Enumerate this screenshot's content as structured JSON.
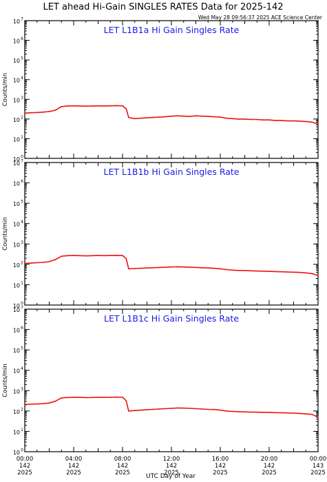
{
  "title": "LET ahead Hi-Gain SINGLES RATES Data for 2025-142",
  "timestamp": "Wed May 28 09:56:37 2025 ACE Science Center",
  "xlabel": "UTC Day of Year",
  "colors": {
    "series": "#ee1111",
    "panel_title": "#1a1ae6",
    "axes": "#000000"
  },
  "chart_data": [
    {
      "type": "line",
      "title": "LET L1B1a Hi Gain Singles Rate",
      "ylabel": "Counts/min",
      "yscale": "log",
      "ylim": [
        1,
        10000000
      ],
      "y_ticks": [
        {
          "base": "10",
          "exp": "0"
        },
        {
          "base": "10",
          "exp": "1"
        },
        {
          "base": "10",
          "exp": "2"
        },
        {
          "base": "10",
          "exp": "3"
        },
        {
          "base": "10",
          "exp": "4"
        },
        {
          "base": "10",
          "exp": "5"
        },
        {
          "base": "10",
          "exp": "6"
        },
        {
          "base": "10",
          "exp": "7"
        }
      ],
      "xlim": [
        0,
        24
      ],
      "series": [
        {
          "x": [
            0,
            0.5,
            1,
            1.5,
            2,
            2.5,
            3,
            3.5,
            4,
            4.5,
            5,
            5.5,
            6,
            6.5,
            7,
            7.5,
            8,
            8.3,
            8.5,
            9,
            9.5,
            10,
            10.5,
            11,
            11.5,
            12,
            12.5,
            13,
            13.5,
            14,
            14.5,
            15,
            15.5,
            16,
            16.5,
            17,
            17.5,
            18,
            18.5,
            19,
            19.5,
            20,
            20.5,
            21,
            21.5,
            22,
            22.5,
            23,
            23.5,
            24
          ],
          "y": [
            200,
            210,
            215,
            225,
            240,
            280,
            430,
            460,
            470,
            460,
            450,
            460,
            470,
            460,
            470,
            480,
            470,
            330,
            120,
            105,
            110,
            115,
            120,
            125,
            130,
            140,
            145,
            140,
            135,
            145,
            140,
            135,
            130,
            125,
            110,
            105,
            100,
            100,
            95,
            95,
            90,
            90,
            85,
            85,
            80,
            80,
            78,
            75,
            70,
            55
          ]
        }
      ]
    },
    {
      "type": "line",
      "title": "LET L1B1b Hi Gain Singles Rate",
      "ylabel": "Counts/min",
      "yscale": "log",
      "ylim": [
        1,
        10000000
      ],
      "y_ticks": [
        {
          "base": "10",
          "exp": "0"
        },
        {
          "base": "10",
          "exp": "1"
        },
        {
          "base": "10",
          "exp": "2"
        },
        {
          "base": "10",
          "exp": "3"
        },
        {
          "base": "10",
          "exp": "4"
        },
        {
          "base": "10",
          "exp": "5"
        },
        {
          "base": "10",
          "exp": "6"
        },
        {
          "base": "10",
          "exp": "7"
        }
      ],
      "xlim": [
        0,
        24
      ],
      "series": [
        {
          "x": [
            0,
            0.5,
            1,
            1.5,
            2,
            2.5,
            3,
            3.5,
            4,
            4.5,
            5,
            5.5,
            6,
            6.5,
            7,
            7.5,
            8,
            8.3,
            8.5,
            9,
            9.5,
            10,
            10.5,
            11,
            11.5,
            12,
            12.5,
            13,
            13.5,
            14,
            14.5,
            15,
            15.5,
            16,
            16.5,
            17,
            17.5,
            18,
            18.5,
            19,
            19.5,
            20,
            20.5,
            21,
            21.5,
            22,
            22.5,
            23,
            23.5,
            24
          ],
          "y": [
            110,
            115,
            120,
            125,
            135,
            170,
            250,
            265,
            270,
            265,
            260,
            265,
            270,
            265,
            270,
            275,
            270,
            190,
            60,
            62,
            64,
            66,
            68,
            70,
            72,
            74,
            76,
            74,
            72,
            70,
            68,
            66,
            64,
            60,
            55,
            52,
            50,
            50,
            48,
            47,
            46,
            45,
            44,
            43,
            42,
            41,
            40,
            38,
            35,
            28
          ]
        }
      ]
    },
    {
      "type": "line",
      "title": "LET L1B1c Hi Gain Singles Rate",
      "ylabel": "Counts/min",
      "yscale": "log",
      "ylim": [
        1,
        10000000
      ],
      "y_ticks": [
        {
          "base": "10",
          "exp": "0"
        },
        {
          "base": "10",
          "exp": "1"
        },
        {
          "base": "10",
          "exp": "2"
        },
        {
          "base": "10",
          "exp": "3"
        },
        {
          "base": "10",
          "exp": "4"
        },
        {
          "base": "10",
          "exp": "5"
        },
        {
          "base": "10",
          "exp": "6"
        },
        {
          "base": "10",
          "exp": "7"
        }
      ],
      "xlim": [
        0,
        24
      ],
      "x_ticks": [
        {
          "hour": "00:00",
          "doy": "142",
          "year": "2025"
        },
        {
          "hour": "04:00",
          "doy": "142",
          "year": "2025"
        },
        {
          "hour": "08:00",
          "doy": "142",
          "year": "2025"
        },
        {
          "hour": "12:00",
          "doy": "142",
          "year": "2025"
        },
        {
          "hour": "16:00",
          "doy": "142",
          "year": "2025"
        },
        {
          "hour": "20:00",
          "doy": "142",
          "year": "2025"
        },
        {
          "hour": "00:00",
          "doy": "143",
          "year": "2025"
        }
      ],
      "series": [
        {
          "x": [
            0,
            0.5,
            1,
            1.5,
            2,
            2.5,
            3,
            3.5,
            4,
            4.5,
            5,
            5.5,
            6,
            6.5,
            7,
            7.5,
            8,
            8.3,
            8.5,
            9,
            9.5,
            10,
            10.5,
            11,
            11.5,
            12,
            12.5,
            13,
            13.5,
            14,
            14.5,
            15,
            15.5,
            16,
            16.5,
            17,
            17.5,
            18,
            18.5,
            19,
            19.5,
            20,
            20.5,
            21,
            21.5,
            22,
            22.5,
            23,
            23.5,
            24
          ],
          "y": [
            210,
            215,
            220,
            230,
            245,
            300,
            440,
            460,
            470,
            465,
            455,
            460,
            470,
            465,
            470,
            480,
            470,
            320,
            100,
            105,
            110,
            115,
            120,
            125,
            130,
            135,
            140,
            138,
            135,
            130,
            125,
            120,
            118,
            110,
            100,
            95,
            92,
            90,
            88,
            87,
            86,
            85,
            83,
            82,
            80,
            78,
            76,
            72,
            68,
            50
          ]
        }
      ]
    }
  ]
}
